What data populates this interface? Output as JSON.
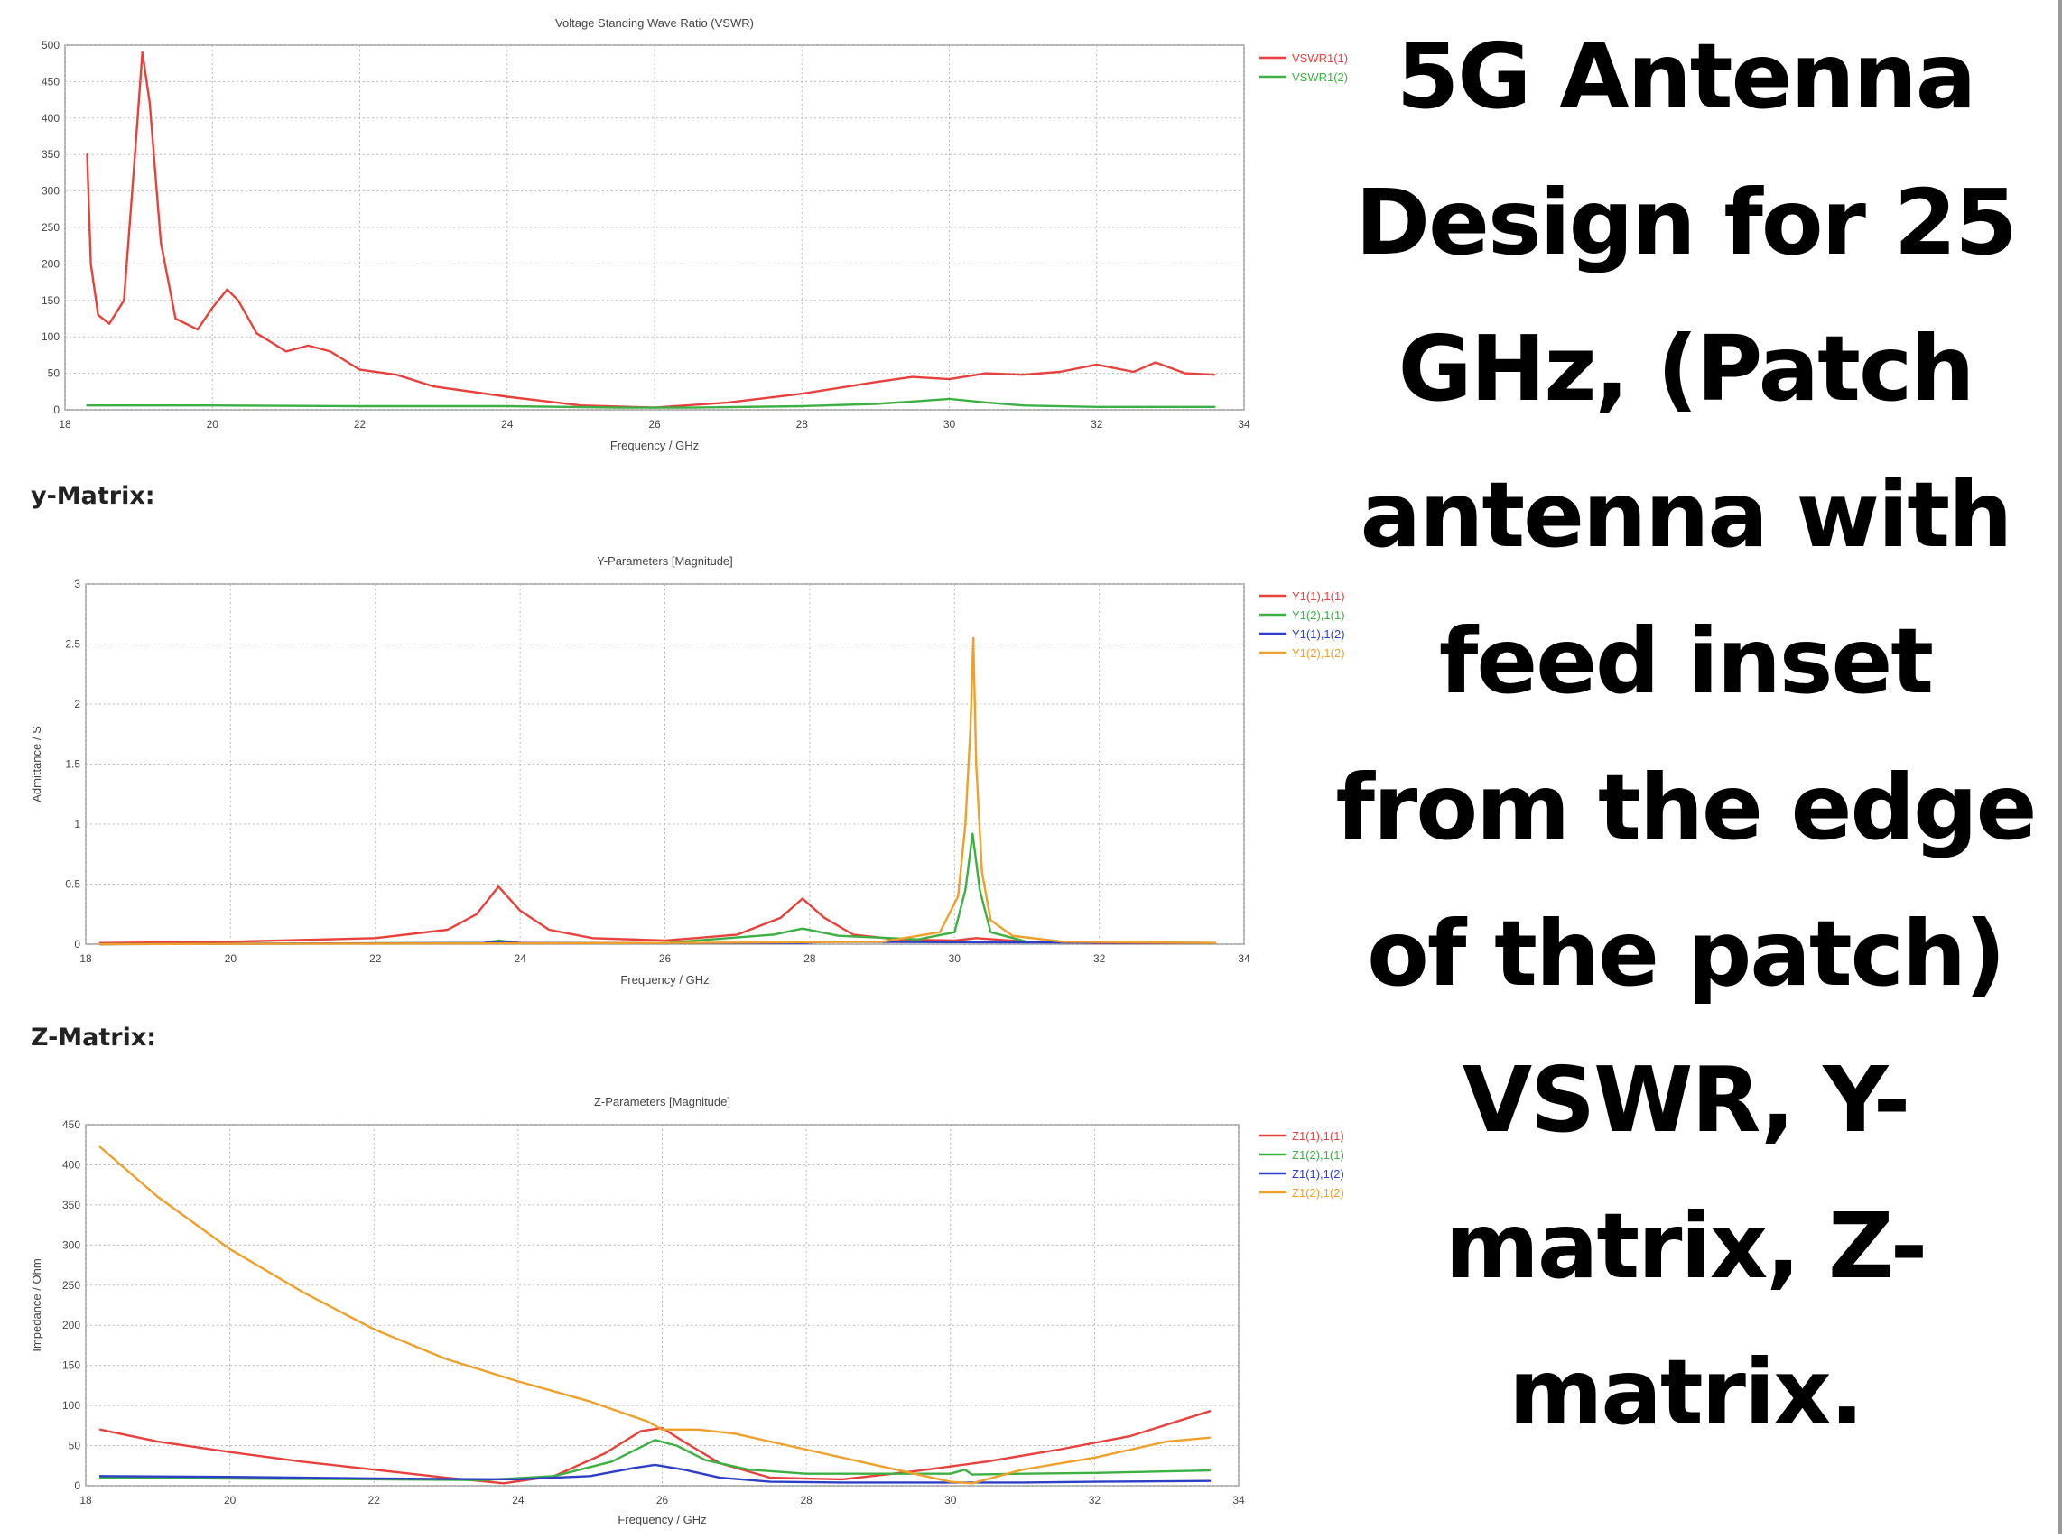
{
  "page": {
    "headline": "5G Antenna Design for 25 GHz, (Patch antenna with feed inset from the edge of the patch) VSWR, Y-matrix, Z-matrix.",
    "section_labels": {
      "y_matrix": "y-Matrix:",
      "z_matrix": "Z-Matrix:"
    }
  },
  "chart_data": [
    {
      "type": "line",
      "title": "Voltage Standing Wave Ratio (VSWR)",
      "xlabel": "Frequency / GHz",
      "ylabel": "",
      "xlim": [
        18,
        34
      ],
      "ylim": [
        0,
        500
      ],
      "xticks": [
        18,
        20,
        22,
        24,
        26,
        28,
        30,
        32,
        34
      ],
      "yticks": [
        0,
        50,
        100,
        150,
        200,
        250,
        300,
        350,
        400,
        450,
        500
      ],
      "grid": true,
      "legend": "outside-right",
      "series": [
        {
          "name": "VSWR1(1)",
          "color": "#e8413c",
          "x": [
            18.3,
            18.35,
            18.45,
            18.6,
            18.8,
            18.95,
            19.05,
            19.15,
            19.3,
            19.5,
            19.8,
            20.0,
            20.2,
            20.35,
            20.6,
            21.0,
            21.3,
            21.6,
            22.0,
            22.5,
            23.0,
            24.0,
            25.0,
            26.0,
            27.0,
            28.0,
            29.0,
            29.5,
            30.0,
            30.5,
            31.0,
            31.5,
            32.0,
            32.5,
            32.8,
            33.2,
            33.6
          ],
          "y": [
            350,
            200,
            130,
            118,
            150,
            350,
            490,
            420,
            230,
            125,
            110,
            140,
            165,
            150,
            105,
            80,
            88,
            80,
            55,
            48,
            32,
            18,
            6,
            3,
            10,
            22,
            38,
            45,
            42,
            50,
            48,
            52,
            62,
            52,
            65,
            50,
            48
          ]
        },
        {
          "name": "VSWR1(2)",
          "color": "#3cb043",
          "x": [
            18.3,
            20.0,
            22.0,
            24.0,
            25.5,
            26.5,
            28.0,
            29.0,
            29.6,
            30.0,
            30.5,
            31.0,
            32.0,
            33.6
          ],
          "y": [
            6,
            6,
            5,
            5,
            3,
            3,
            5,
            8,
            12,
            15,
            10,
            6,
            4,
            4
          ]
        }
      ]
    },
    {
      "type": "line",
      "title": "Y-Parameters [Magnitude]",
      "xlabel": "Frequency / GHz",
      "ylabel": "Admittance / S",
      "xlim": [
        18,
        34
      ],
      "ylim": [
        0,
        3
      ],
      "xticks": [
        18,
        20,
        22,
        24,
        26,
        28,
        30,
        32,
        34
      ],
      "yticks": [
        0,
        0.5,
        1,
        1.5,
        2,
        2.5,
        3
      ],
      "grid": true,
      "legend": "outside-right",
      "series": [
        {
          "name": "Y1(1),1(1)",
          "color": "#e8413c",
          "x": [
            18.2,
            20,
            22,
            23,
            23.4,
            23.7,
            24.0,
            24.4,
            25,
            26,
            27,
            27.6,
            27.9,
            28.2,
            28.6,
            29.2,
            30.0,
            30.3,
            31,
            32,
            33.6
          ],
          "y": [
            0.01,
            0.02,
            0.05,
            0.12,
            0.25,
            0.48,
            0.28,
            0.12,
            0.05,
            0.03,
            0.08,
            0.22,
            0.38,
            0.22,
            0.08,
            0.04,
            0.03,
            0.05,
            0.02,
            0.01,
            0.01
          ]
        },
        {
          "name": "Y1(2),1(1)",
          "color": "#3cb043",
          "x": [
            18.2,
            23.5,
            23.7,
            24,
            26,
            27.5,
            27.9,
            28.4,
            29.5,
            30.0,
            30.15,
            30.25,
            30.35,
            30.5,
            31,
            33.6
          ],
          "y": [
            0,
            0.01,
            0.03,
            0.01,
            0.01,
            0.08,
            0.13,
            0.07,
            0.04,
            0.1,
            0.45,
            0.92,
            0.45,
            0.1,
            0.02,
            0.01
          ]
        },
        {
          "name": "Y1(1),1(2)",
          "color": "#2e3fc7",
          "x": [
            18.2,
            23.5,
            23.7,
            24,
            27.9,
            28.2,
            33.6
          ],
          "y": [
            0,
            0.01,
            0.02,
            0.01,
            0.01,
            0.02,
            0.01
          ]
        },
        {
          "name": "Y1(2),1(2)",
          "color": "#f0a02a",
          "x": [
            18.2,
            26,
            29,
            29.8,
            30.05,
            30.15,
            30.22,
            30.26,
            30.3,
            30.38,
            30.5,
            30.8,
            31.5,
            33.6
          ],
          "y": [
            0,
            0.01,
            0.02,
            0.1,
            0.4,
            1.0,
            1.8,
            2.55,
            1.5,
            0.6,
            0.2,
            0.07,
            0.02,
            0.01
          ]
        }
      ]
    },
    {
      "type": "line",
      "title": "Z-Parameters [Magnitude]",
      "xlabel": "Frequency / GHz",
      "ylabel": "Impedance / Ohm",
      "xlim": [
        18,
        34
      ],
      "ylim": [
        0,
        450
      ],
      "xticks": [
        18,
        20,
        22,
        24,
        26,
        28,
        30,
        32,
        34
      ],
      "yticks": [
        0,
        50,
        100,
        150,
        200,
        250,
        300,
        350,
        400,
        450
      ],
      "grid": true,
      "legend": "outside-right",
      "series": [
        {
          "name": "Z1(1),1(1)",
          "color": "#e8413c",
          "x": [
            18.2,
            19,
            20,
            21,
            22,
            23,
            23.8,
            24.5,
            25.2,
            25.7,
            26.0,
            26.3,
            26.8,
            27.5,
            28.5,
            29.5,
            30.5,
            31.5,
            32.5,
            33.6
          ],
          "y": [
            70,
            55,
            42,
            30,
            20,
            10,
            3,
            12,
            40,
            68,
            72,
            55,
            28,
            10,
            8,
            18,
            30,
            45,
            62,
            93
          ]
        },
        {
          "name": "Z1(2),1(1)",
          "color": "#3cb043",
          "x": [
            18.2,
            20,
            22,
            23.5,
            24.5,
            25.3,
            25.7,
            25.9,
            26.2,
            26.6,
            27.2,
            28,
            29,
            30,
            30.2,
            30.3,
            31,
            32,
            33.6
          ],
          "y": [
            10,
            9,
            8,
            7,
            12,
            30,
            48,
            57,
            50,
            32,
            20,
            15,
            15,
            15,
            20,
            14,
            15,
            16,
            19
          ]
        },
        {
          "name": "Z1(1),1(2)",
          "color": "#2e3fc7",
          "x": [
            18.2,
            20,
            22,
            24,
            25,
            25.6,
            25.9,
            26.3,
            26.8,
            27.5,
            28.5,
            30,
            31,
            32,
            33.6
          ],
          "y": [
            12,
            11,
            9,
            8,
            12,
            22,
            26,
            20,
            10,
            5,
            4,
            4,
            4,
            5,
            6
          ]
        },
        {
          "name": "Z1(2),1(2)",
          "color": "#f0a02a",
          "x": [
            18.2,
            19,
            20,
            21,
            22,
            23,
            24,
            25,
            25.8,
            26.0,
            26.5,
            27,
            28,
            29,
            30,
            30.3,
            31,
            32,
            33,
            33.6
          ],
          "y": [
            422,
            360,
            295,
            242,
            195,
            158,
            130,
            105,
            80,
            70,
            70,
            65,
            45,
            25,
            5,
            3,
            20,
            35,
            55,
            60
          ]
        }
      ]
    }
  ]
}
